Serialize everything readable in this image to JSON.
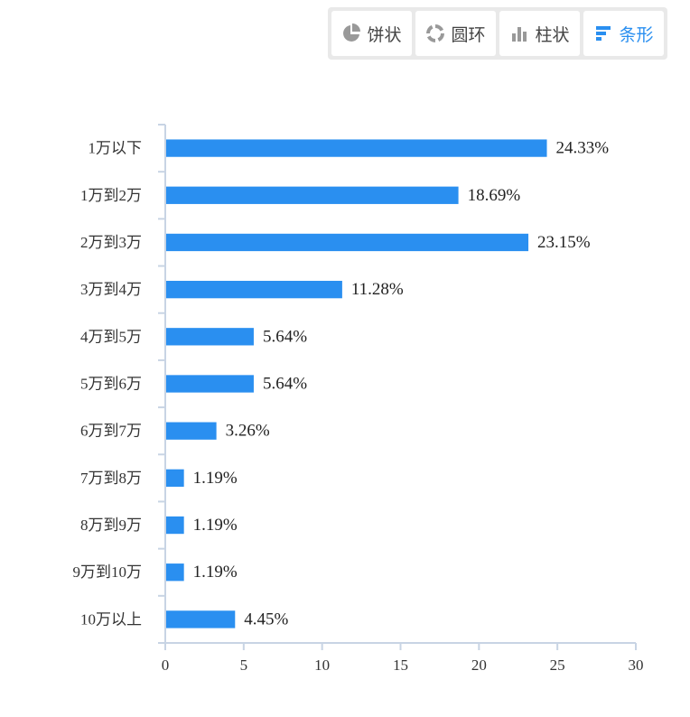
{
  "toolbar": {
    "buttons": [
      {
        "label": "饼状",
        "icon": "pie-icon",
        "active": false
      },
      {
        "label": "圆环",
        "icon": "donut-icon",
        "active": false
      },
      {
        "label": "柱状",
        "icon": "column-icon",
        "active": false
      },
      {
        "label": "条形",
        "icon": "bar-icon",
        "active": true
      }
    ]
  },
  "colors": {
    "bar": "#2a8ff0",
    "axis": "#c8d4e4",
    "active": "#2a8ff0",
    "icon_inactive": "#999999"
  },
  "chart_data": {
    "type": "bar",
    "orientation": "horizontal",
    "categories": [
      "1万以下",
      "1万到2万",
      "2万到3万",
      "3万到4万",
      "4万到5万",
      "5万到6万",
      "6万到7万",
      "7万到8万",
      "8万到9万",
      "9万到10万",
      "10万以上"
    ],
    "values": [
      24.33,
      18.69,
      23.15,
      11.28,
      5.64,
      5.64,
      3.26,
      1.19,
      1.19,
      1.19,
      4.45
    ],
    "value_labels": [
      "24.33%",
      "18.69%",
      "23.15%",
      "11.28%",
      "5.64%",
      "5.64%",
      "3.26%",
      "1.19%",
      "1.19%",
      "1.19%",
      "4.45%"
    ],
    "xlim": [
      0,
      30
    ],
    "xticks": [
      0,
      5,
      10,
      15,
      20,
      25,
      30
    ],
    "grid": false
  }
}
